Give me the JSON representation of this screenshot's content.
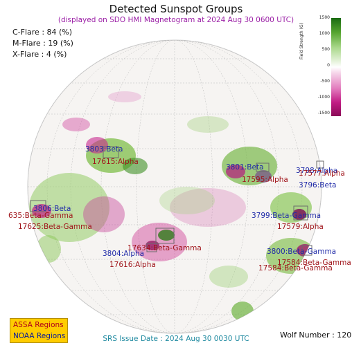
{
  "header": {
    "title": "Detected Sunspot Groups",
    "subtitle": "(displayed on SDO HMI Magnetogram at 2024 Aug 30 0600 UTC)"
  },
  "flare_probabilities": [
    {
      "label": "C-Flare : 84 (%)"
    },
    {
      "label": "M-Flare : 19 (%)"
    },
    {
      "label": "X-Flare :  4 (%)"
    }
  ],
  "colorbar": {
    "label": "Field Strength (G)",
    "ticks": [
      "1500",
      "1000",
      "500",
      "0",
      "-500",
      "-1000",
      "-1500"
    ],
    "colors": {
      "positive": "#1a6b12",
      "zero": "#ffffff",
      "negative": "#8a0a56"
    }
  },
  "regions": {
    "assa": [
      {
        "name": "3803:Beta"
      },
      {
        "name": "3801:Beta"
      },
      {
        "name": "3798:Alpha"
      },
      {
        "name": "3796:Beta"
      },
      {
        "name": "3806:Beta"
      },
      {
        "name": "3799:Beta-Gamma"
      },
      {
        "name": "3804:Alpha"
      },
      {
        "name": "3800:Beta-Gamma"
      }
    ],
    "noaa": [
      {
        "name": "17615:Alpha"
      },
      {
        "name": "17595:Alpha"
      },
      {
        "name": "17577:Alpha"
      },
      {
        "name": "635:Beta-Gamma"
      },
      {
        "name": "17625:Beta-Gamma"
      },
      {
        "name": "17579:Alpha"
      },
      {
        "name": "17634:Beta-Gamma"
      },
      {
        "name": "17616:Alpha"
      },
      {
        "name": "17584:Beta-Gamma"
      },
      {
        "name": "17584:Beta-Gamma"
      }
    ]
  },
  "legend": {
    "assa_label": "ASSA Regions",
    "noaa_label": "NOAA Regions",
    "assa_color": "#1f2aa8",
    "noaa_color": "#a0141a",
    "box_color": "#ffcc00"
  },
  "footer": {
    "srs_issue": "SRS Issue Date : 2024 Aug 30 0030 UTC",
    "wolf_number": "Wolf Number : 120"
  }
}
